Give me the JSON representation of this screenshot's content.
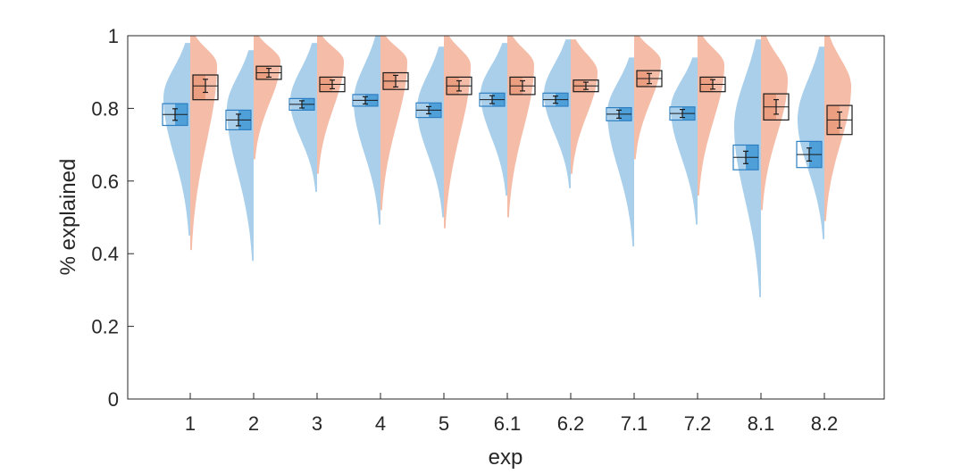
{
  "colors": {
    "blue_fill": "#a9cfea",
    "blue_box": "#4f9fd8",
    "blue_box_edge": "#2d7fc1",
    "red_fill": "#f5bca8",
    "red_box": "#ec9f80",
    "red_box_edge": "#1a1a1a",
    "axis": "#262626"
  },
  "chart_data": {
    "type": "violin",
    "xlabel": "exp",
    "ylabel": "% explained",
    "ylim": [
      0,
      1
    ],
    "yticks": [
      "0",
      "0.2",
      "0.4",
      "0.6",
      "0.8",
      "1"
    ],
    "categories": [
      "1",
      "2",
      "3",
      "4",
      "5",
      "6.1",
      "6.2",
      "7.1",
      "7.2",
      "8.1",
      "8.2"
    ],
    "grid": false,
    "series": [
      {
        "color": "blue",
        "min": [
          0.45,
          0.38,
          0.57,
          0.48,
          0.5,
          0.56,
          0.58,
          0.42,
          0.48,
          0.28,
          0.44
        ],
        "max": [
          0.98,
          0.96,
          0.98,
          1.0,
          0.97,
          0.98,
          0.99,
          0.94,
          0.94,
          0.99,
          0.97
        ],
        "mode": [
          0.83,
          0.8,
          0.82,
          0.82,
          0.8,
          0.84,
          0.84,
          0.79,
          0.8,
          0.75,
          0.77
        ],
        "mean": [
          0.783,
          0.768,
          0.811,
          0.822,
          0.795,
          0.824,
          0.824,
          0.784,
          0.786,
          0.665,
          0.673
        ],
        "ci": [
          0.016,
          0.016,
          0.01,
          0.01,
          0.01,
          0.011,
          0.01,
          0.011,
          0.011,
          0.017,
          0.018
        ],
        "box_low": [
          0.753,
          0.741,
          0.795,
          0.806,
          0.775,
          0.806,
          0.806,
          0.766,
          0.768,
          0.631,
          0.637
        ],
        "box_high": [
          0.813,
          0.795,
          0.827,
          0.838,
          0.815,
          0.842,
          0.842,
          0.802,
          0.804,
          0.699,
          0.709
        ]
      },
      {
        "color": "red",
        "min": [
          0.41,
          0.66,
          0.62,
          0.52,
          0.47,
          0.5,
          0.62,
          0.66,
          0.56,
          0.52,
          0.49
        ],
        "max": [
          1.0,
          1.0,
          1.0,
          1.0,
          1.0,
          1.0,
          0.99,
          1.0,
          1.0,
          1.0,
          1.0
        ],
        "mode": [
          0.92,
          0.93,
          0.93,
          0.93,
          0.92,
          0.92,
          0.9,
          0.93,
          0.92,
          0.88,
          0.86
        ],
        "mean": [
          0.862,
          0.898,
          0.866,
          0.875,
          0.862,
          0.862,
          0.862,
          0.882,
          0.866,
          0.804,
          0.768
        ],
        "ci": [
          0.018,
          0.012,
          0.012,
          0.016,
          0.014,
          0.014,
          0.01,
          0.014,
          0.013,
          0.02,
          0.022
        ],
        "box_low": [
          0.824,
          0.88,
          0.846,
          0.852,
          0.838,
          0.838,
          0.846,
          0.86,
          0.846,
          0.768,
          0.728
        ],
        "box_high": [
          0.892,
          0.916,
          0.886,
          0.898,
          0.886,
          0.886,
          0.878,
          0.904,
          0.886,
          0.84,
          0.808
        ]
      }
    ]
  }
}
